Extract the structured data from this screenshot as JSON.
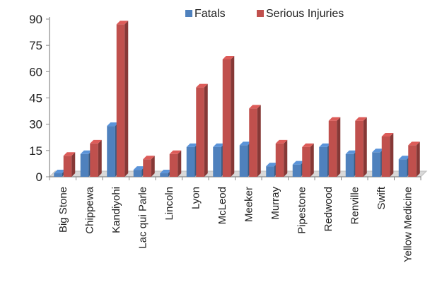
{
  "chart_data": {
    "type": "bar",
    "categories": [
      "Big Stone",
      "Chippewa",
      "Kandiyohi",
      "Lac qui Parle",
      "Lincoln",
      "Lyon",
      "McLeod",
      "Meeker",
      "Murray",
      "Pipestone",
      "Redwood",
      "Renville",
      "Swift",
      "Yellow Medicine"
    ],
    "series": [
      {
        "name": "Fatals",
        "color": "#4f81bd",
        "values": [
          2,
          13,
          29,
          4,
          2,
          17,
          17,
          18,
          6,
          7,
          17,
          13,
          14,
          10
        ]
      },
      {
        "name": "Serious Injuries",
        "color": "#c0504d",
        "values": [
          12,
          19,
          87,
          10,
          13,
          51,
          67,
          39,
          19,
          17,
          32,
          32,
          23,
          18
        ]
      }
    ],
    "yticks": [
      "0",
      "15",
      "30",
      "45",
      "60",
      "75",
      "90"
    ],
    "ylim": [
      0,
      90
    ],
    "grid": false,
    "legend_position": "top",
    "title": "",
    "xlabel": "",
    "ylabel": ""
  }
}
